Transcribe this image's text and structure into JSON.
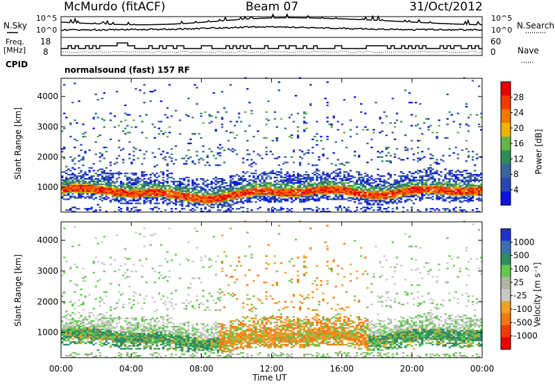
{
  "header": {
    "station": "McMurdo (fitACF)",
    "beam": "Beam 07",
    "date": "31/Oct/2012"
  },
  "noise_panel": {
    "left_label": "N.Sky",
    "right_label": "N.Search",
    "left_ticks": [
      "10^5",
      "10^0"
    ],
    "right_ticks": [
      "10^5",
      "10^0"
    ]
  },
  "freq_panel": {
    "left_label_1": "Freq.",
    "left_label_2": "[MHz]",
    "right_label": "Nave",
    "left_ticks": [
      "18",
      "8"
    ],
    "right_ticks": [
      "60",
      "0"
    ]
  },
  "cpid": {
    "label": "CPID",
    "value": "normalsound (fast) 157 RF"
  },
  "colors": {
    "power_scale": [
      "#0a14dc",
      "#2846b4",
      "#3c64a0",
      "#2e8c5a",
      "#64b446",
      "#f0b400",
      "#f07800",
      "#f03c00",
      "#e60000"
    ],
    "velocity_scale": [
      "#1e32c8",
      "#3c6eb4",
      "#2e8c64",
      "#64c850",
      "#b4b4a0",
      "#c8c8c8",
      "#f0a028",
      "#f07814",
      "#f03c0a",
      "#e60000"
    ]
  },
  "chart_data": [
    {
      "type": "heatmap",
      "title": "Power",
      "ylabel": "Slant Range [km]",
      "xlabel": "Time UT",
      "x_ticks": [
        "00:00",
        "04:00",
        "08:00",
        "12:00",
        "16:00",
        "20:00",
        "00:00"
      ],
      "y_ticks": [
        1000,
        2000,
        3000,
        4000
      ],
      "colorbar_label": "Power [dB]",
      "colorbar_ticks": [
        4,
        8,
        12,
        16,
        20,
        24,
        28
      ],
      "xlim_hours": [
        0,
        24
      ],
      "ylim_km": [
        180,
        4600
      ]
    },
    {
      "type": "heatmap",
      "title": "Velocity",
      "ylabel": "Slant Range [km]",
      "xlabel": "Time UT",
      "x_ticks": [
        "00:00",
        "04:00",
        "08:00",
        "12:00",
        "16:00",
        "20:00",
        "00:00"
      ],
      "y_ticks": [
        1000,
        2000,
        3000,
        4000
      ],
      "colorbar_label": "Velocity [m s⁻¹]",
      "colorbar_ticks": [
        1000,
        500,
        100,
        25,
        -25,
        -100,
        -500,
        -1000
      ],
      "xlim_hours": [
        0,
        24
      ],
      "ylim_km": [
        180,
        4600
      ]
    }
  ]
}
